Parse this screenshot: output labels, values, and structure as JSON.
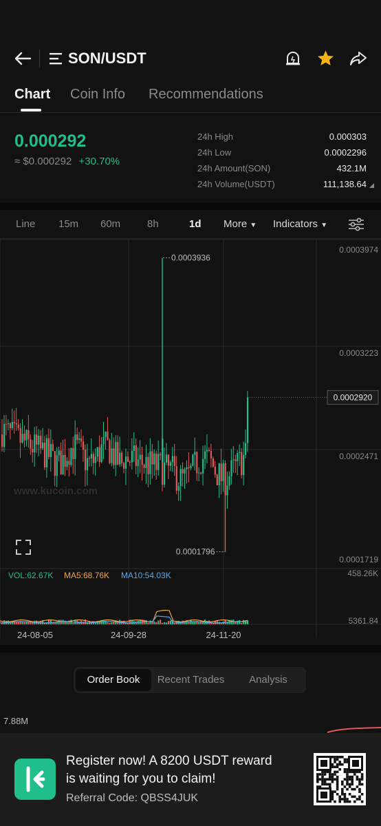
{
  "header": {
    "pair": "SON/USDT",
    "back_icon": "arrow-left-icon",
    "menu_icon": "menu-icon",
    "alert_icon": "price-alert-icon",
    "favorite_icon": "star-icon",
    "share_icon": "share-icon"
  },
  "tabs": [
    {
      "label": "Chart",
      "active": true
    },
    {
      "label": "Coin Info",
      "active": false
    },
    {
      "label": "Recommendations",
      "active": false
    }
  ],
  "price": {
    "last": "0.000292",
    "approx": "≈ $0.000292",
    "change": "+30.70%"
  },
  "stats": [
    {
      "label": "24h High",
      "value": "0.000303"
    },
    {
      "label": "24h Low",
      "value": "0.0002296"
    },
    {
      "label": "24h Amount(SON)",
      "value": "432.1M"
    },
    {
      "label": "24h Volume(USDT)",
      "value": "111,138.64"
    }
  ],
  "intervals": {
    "items": [
      "Line",
      "15m",
      "60m",
      "8h",
      "1d"
    ],
    "active": "1d",
    "more_label": "More",
    "indicators_label": "Indicators"
  },
  "chart_data": {
    "type": "candlestick",
    "price_axis_labels": [
      "0.0003974",
      "0.0003223",
      "0.0002471",
      "0.0001719"
    ],
    "ylim": [
      0.0001719,
      0.0003974
    ],
    "current_price_label": "0.0002920",
    "max_marker": "0.0003936",
    "min_marker": "0.0001796",
    "date_labels": [
      "24-08-05",
      "24-09-28",
      "24-11-20"
    ],
    "volume_indicators": {
      "vol": "VOL:62.67K",
      "ma5": "MA5:68.76K",
      "ma10": "MA10:54.03K",
      "axis_top": "458.26K",
      "axis_bottom": "5361.84"
    },
    "watermark": "www.kucoin.com",
    "colors": {
      "up": "#1fbe8a",
      "down": "#e05a5a",
      "ma5": "#f0a64a",
      "ma10": "#5aa8e8"
    }
  },
  "orderbook_tabs": [
    {
      "label": "Order Book",
      "active": true
    },
    {
      "label": "Recent Trades",
      "active": false
    },
    {
      "label": "Analysis",
      "active": false
    }
  ],
  "depth_label": "7.88M",
  "banner": {
    "line1": "Register now! A 8200 USDT reward",
    "line2": "is waiting for you to claim!",
    "referral": "Referral Code: QBSS4JUK",
    "logo_icon": "kucoin-logo-icon",
    "qr_icon": "qr-code-icon"
  },
  "colors": {
    "accent": "#1fbe8a",
    "down": "#e05a5a",
    "star": "#f5b317",
    "bg": "#121212"
  }
}
